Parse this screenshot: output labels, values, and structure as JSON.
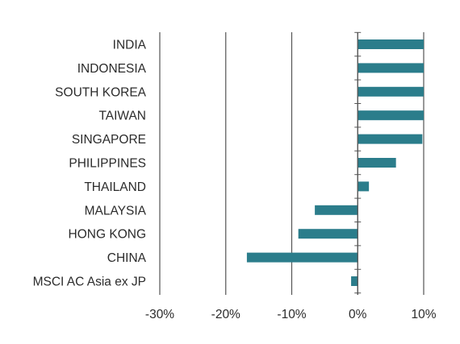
{
  "chart_data": {
    "type": "bar",
    "orientation": "horizontal",
    "title": "",
    "xlabel": "",
    "ylabel": "",
    "categories": [
      "INDIA",
      "INDONESIA",
      "SOUTH KOREA",
      "TAIWAN",
      "SINGAPORE",
      "PHILIPPINES",
      "THAILAND",
      "MALAYSIA",
      "HONG KONG",
      "CHINA",
      "MSCI AC Asia ex JP"
    ],
    "values": [
      10,
      10,
      10,
      10,
      9.8,
      5.8,
      1.7,
      -6.5,
      -9.0,
      -16.8,
      -1.0
    ],
    "xlim": [
      -30,
      10
    ],
    "xticks": [
      -30,
      -20,
      -10,
      0,
      10
    ],
    "xtick_labels": [
      "-30%",
      "-20%",
      "-10%",
      "0%",
      "10%"
    ],
    "grid": "vertical",
    "legend": "none",
    "bar_color": "#2b7d8b",
    "grid_color": "#555555"
  }
}
